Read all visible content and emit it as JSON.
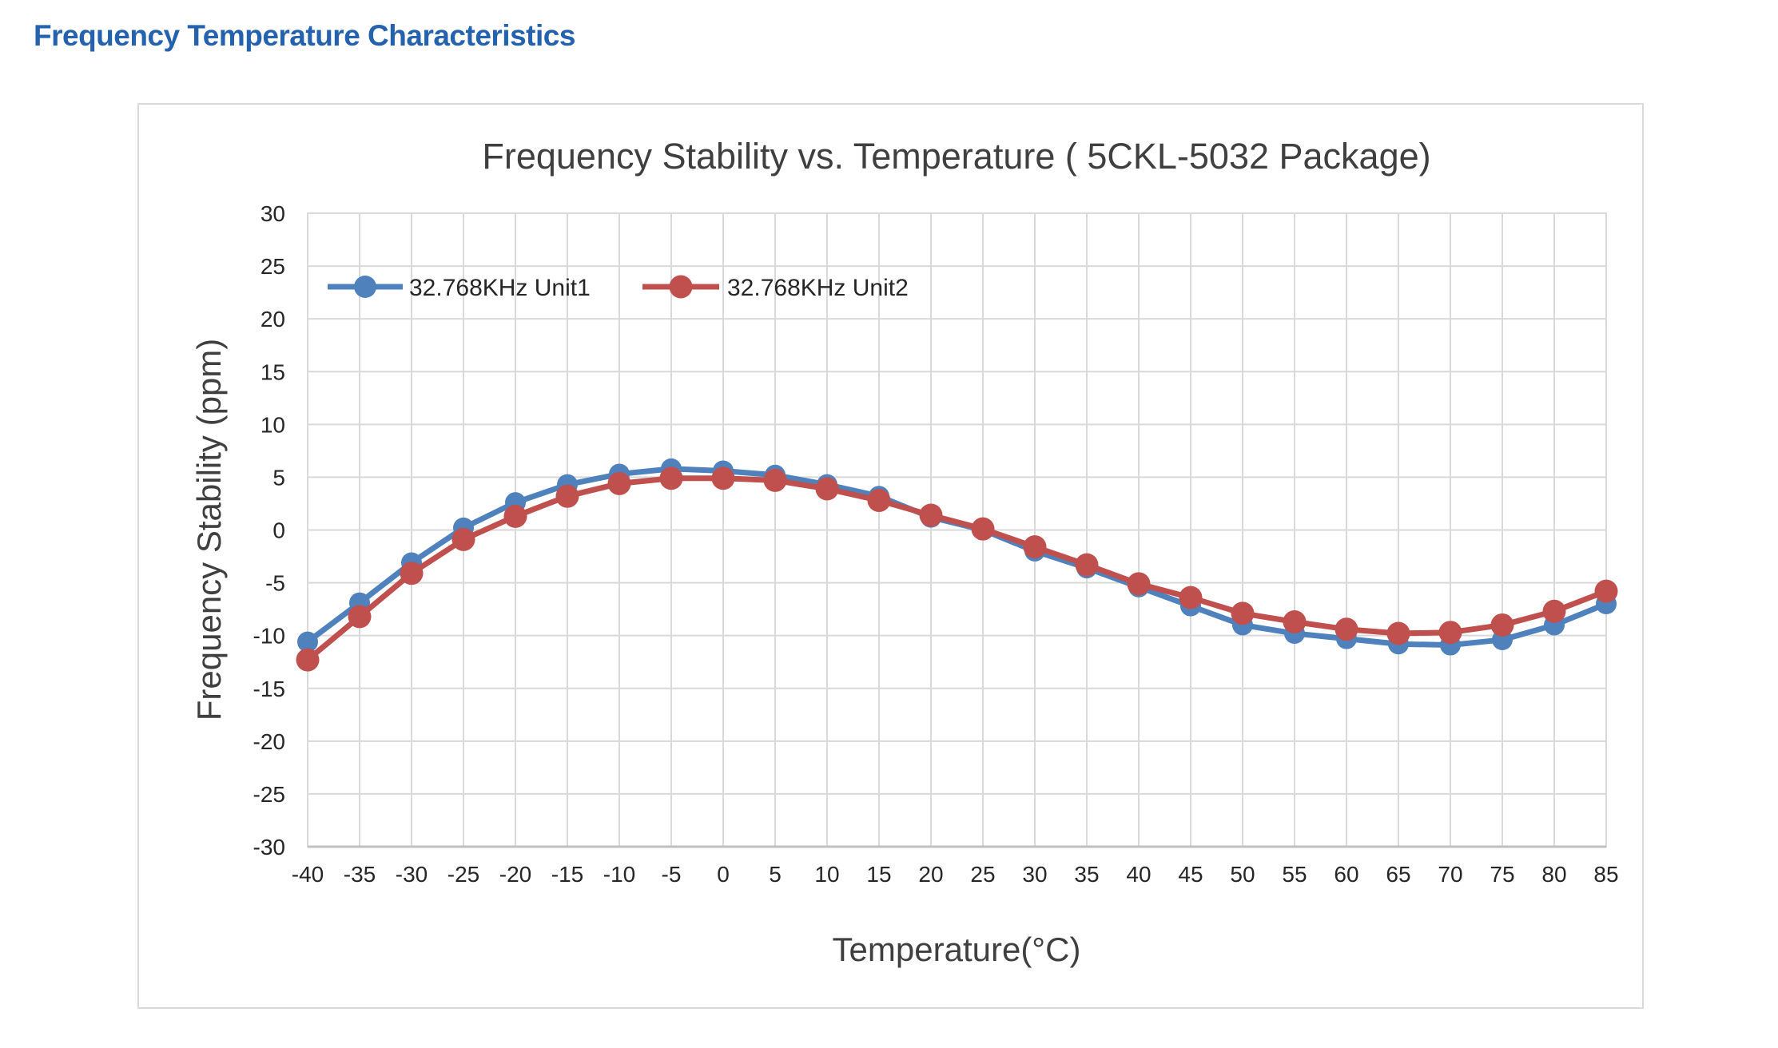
{
  "page": {
    "heading": "Frequency Temperature Characteristics"
  },
  "colors": {
    "heading": "#2461AE",
    "chart_title": "#3F3F3F",
    "axis_title": "#3F3F3F",
    "tick_label": "#262626",
    "legend_label": "#262626",
    "gridline": "#D9D9D9",
    "plot_frame": "#D9D9D9",
    "axis_line": "#C1C1C1",
    "panel_border": "#DADADA"
  },
  "chart_data": {
    "type": "line",
    "title": "Frequency Stability vs. Temperature ( 5CKL-5032 Package)",
    "xlabel": "Temperature(°C)",
    "ylabel": "Frequency Stability (ppm)",
    "x": [
      -40,
      -35,
      -30,
      -25,
      -20,
      -15,
      -10,
      -5,
      0,
      5,
      10,
      15,
      20,
      25,
      30,
      35,
      40,
      45,
      50,
      55,
      60,
      65,
      70,
      75,
      80,
      85
    ],
    "xlim": [
      -40,
      85
    ],
    "ylim": [
      -30,
      30
    ],
    "xtick_step": 5,
    "ytick_step": 5,
    "grid": true,
    "legend_position": "inside-top-left",
    "series": [
      {
        "name": "32.768KHz Unit1",
        "color": "#4F81BD",
        "values": [
          -10.6,
          -6.9,
          -3.1,
          0.2,
          2.6,
          4.3,
          5.3,
          5.8,
          5.6,
          5.2,
          4.3,
          3.2,
          1.2,
          0.0,
          -2.0,
          -3.6,
          -5.4,
          -7.2,
          -9.0,
          -9.8,
          -10.3,
          -10.8,
          -10.9,
          -10.4,
          -9.0,
          -7.0
        ]
      },
      {
        "name": "32.768KHz Unit2",
        "color": "#C0504D",
        "values": [
          -12.3,
          -8.2,
          -4.1,
          -0.9,
          1.3,
          3.2,
          4.4,
          4.9,
          4.9,
          4.7,
          3.9,
          2.8,
          1.4,
          0.1,
          -1.6,
          -3.3,
          -5.1,
          -6.4,
          -7.9,
          -8.7,
          -9.4,
          -9.8,
          -9.7,
          -9.0,
          -7.7,
          -5.8
        ]
      }
    ]
  }
}
